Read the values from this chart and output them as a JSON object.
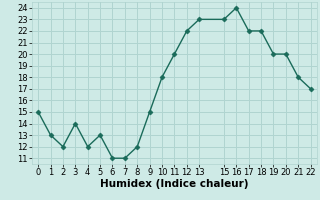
{
  "x": [
    0,
    1,
    2,
    3,
    4,
    5,
    6,
    7,
    8,
    9,
    10,
    11,
    12,
    13,
    15,
    16,
    17,
    18,
    19,
    20,
    21,
    22
  ],
  "y": [
    15,
    13,
    12,
    14,
    12,
    13,
    11,
    11,
    12,
    15,
    18,
    20,
    22,
    23,
    23,
    24,
    22,
    22,
    20,
    20,
    18,
    17
  ],
  "line_color": "#1a6b5a",
  "marker": "D",
  "marker_size": 2.5,
  "bg_color": "#ceeae6",
  "grid_color": "#b0d4d0",
  "xlabel": "Humidex (Indice chaleur)",
  "xlim": [
    -0.5,
    22.5
  ],
  "ylim": [
    10.5,
    24.5
  ],
  "yticks": [
    11,
    12,
    13,
    14,
    15,
    16,
    17,
    18,
    19,
    20,
    21,
    22,
    23,
    24
  ],
  "xticks": [
    0,
    1,
    2,
    3,
    4,
    5,
    6,
    7,
    8,
    9,
    10,
    11,
    12,
    13,
    15,
    16,
    17,
    18,
    19,
    20,
    21,
    22
  ],
  "label_fontsize": 7.5,
  "tick_fontsize": 6.0
}
